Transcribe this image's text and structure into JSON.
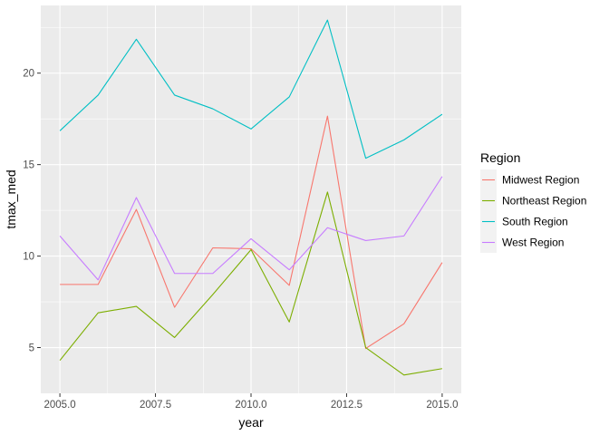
{
  "chart_data": {
    "type": "line",
    "xlabel": "year",
    "ylabel": "tmax_med",
    "xlim": [
      2004.5,
      2015.5
    ],
    "ylim": [
      2.5,
      23.7
    ],
    "x_ticks": [
      2005.0,
      2007.5,
      2010.0,
      2012.5,
      2015.0
    ],
    "x_tick_labels": [
      "2005.0",
      "2007.5",
      "2010.0",
      "2012.5",
      "2015.0"
    ],
    "y_ticks": [
      5,
      10,
      15,
      20
    ],
    "y_tick_labels": [
      "5",
      "10",
      "15",
      "20"
    ],
    "grid": true,
    "legend": {
      "title": "Region",
      "position": "right"
    },
    "x": [
      2005,
      2006,
      2007,
      2008,
      2009,
      2010,
      2011,
      2012,
      2013,
      2014,
      2015
    ],
    "series": [
      {
        "name": "Midwest Region",
        "color": "#F8766D",
        "values": [
          8.45,
          8.45,
          12.55,
          7.2,
          10.45,
          10.4,
          8.4,
          17.65,
          4.95,
          6.3,
          9.65
        ]
      },
      {
        "name": "Northeast Region",
        "color": "#7CAE00",
        "values": [
          4.3,
          6.9,
          7.25,
          5.55,
          7.9,
          10.35,
          6.4,
          13.5,
          5.0,
          3.5,
          3.85
        ]
      },
      {
        "name": "South Region",
        "color": "#00BFC4",
        "values": [
          16.85,
          18.8,
          21.85,
          18.8,
          18.05,
          16.95,
          18.7,
          22.9,
          15.35,
          16.35,
          17.75
        ]
      },
      {
        "name": "West Region",
        "color": "#C77CFF",
        "values": [
          11.1,
          8.7,
          13.2,
          9.05,
          9.05,
          10.95,
          9.25,
          11.55,
          10.85,
          11.1,
          14.35
        ]
      }
    ]
  }
}
